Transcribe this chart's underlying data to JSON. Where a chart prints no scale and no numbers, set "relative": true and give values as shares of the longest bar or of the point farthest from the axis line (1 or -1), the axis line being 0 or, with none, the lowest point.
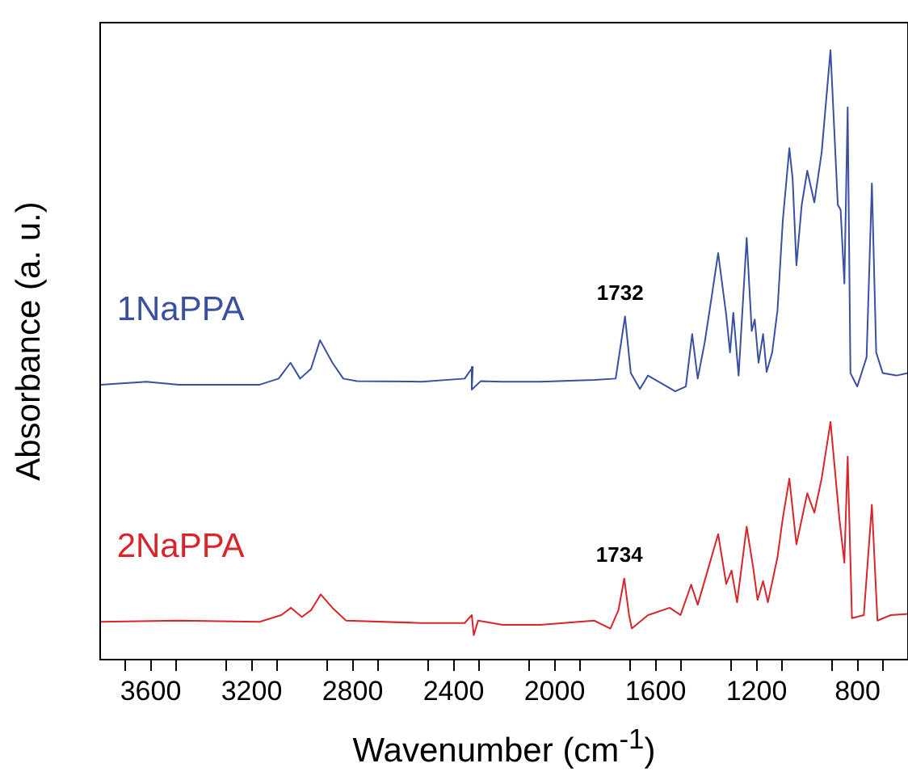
{
  "chart_data": {
    "type": "line",
    "relative": true,
    "xlabel": "Wavenumber (cm$^{-1}$)",
    "ylabel": "Absorbance (a. u.)",
    "legend": false,
    "grid": false,
    "marker": "none",
    "line_style": "solid",
    "xlim": [
      3800,
      600
    ],
    "xticks": [
      {
        "value": 3700,
        "label": null
      },
      3600,
      {
        "value": 3500,
        "label": null
      },
      {
        "value": 3300,
        "label": null
      },
      3200,
      {
        "value": 3100,
        "label": null
      },
      {
        "value": 2900,
        "label": null
      },
      2800,
      {
        "value": 2700,
        "label": null
      },
      {
        "value": 2500,
        "label": null
      },
      2400,
      {
        "value": 2300,
        "label": null
      },
      {
        "value": 2100,
        "label": null
      },
      2000,
      {
        "value": 1900,
        "label": null
      },
      {
        "value": 1700,
        "label": null
      },
      1600,
      {
        "value": 1500,
        "label": null
      },
      {
        "value": 1300,
        "label": null
      },
      1200,
      {
        "value": 1100,
        "label": null
      },
      {
        "value": 900,
        "label": null
      },
      800,
      {
        "value": 700,
        "label": null
      }
    ],
    "series": [
      {
        "name": "1NaPPA",
        "color": "#3a4fa0",
        "x": [
          3798,
          3617,
          3488,
          3168,
          3093,
          3046,
          3008,
          2965,
          2929,
          2880,
          2837,
          2783,
          2527,
          2356,
          2324,
          2328,
          2292,
          2206,
          2057,
          1843,
          1758,
          1721,
          1698,
          1662,
          1630,
          1522,
          1480,
          1455,
          1433,
          1405,
          1384,
          1352,
          1320,
          1305,
          1292,
          1271,
          1239,
          1219,
          1207,
          1192,
          1174,
          1160,
          1138,
          1117,
          1096,
          1070,
          1057,
          1042,
          1021,
          999,
          971,
          942,
          907,
          878,
          867,
          852,
          839,
          828,
          801,
          764,
          743,
          726,
          700,
          646,
          600
        ],
        "values": [
          0.451,
          0.456,
          0.451,
          0.451,
          0.461,
          0.487,
          0.461,
          0.477,
          0.524,
          0.487,
          0.461,
          0.457,
          0.456,
          0.461,
          0.48,
          0.443,
          0.457,
          0.456,
          0.456,
          0.459,
          0.461,
          0.563,
          0.47,
          0.444,
          0.466,
          0.44,
          0.448,
          0.534,
          0.461,
          0.521,
          0.578,
          0.667,
          0.565,
          0.504,
          0.569,
          0.466,
          0.692,
          0.539,
          0.558,
          0.487,
          0.534,
          0.472,
          0.504,
          0.573,
          0.72,
          0.839,
          0.789,
          0.647,
          0.746,
          0.802,
          0.75,
          0.832,
          1.0,
          0.746,
          0.738,
          0.617,
          0.906,
          0.47,
          0.448,
          0.496,
          0.781,
          0.504,
          0.47,
          0.466,
          0.47
        ]
      },
      {
        "name": "2NaPPA",
        "color": "#d8242a",
        "x": [
          3798,
          3488,
          3168,
          3083,
          3044,
          3001,
          2965,
          2926,
          2880,
          2826,
          2527,
          2356,
          2328,
          2320,
          2303,
          2206,
          2057,
          1843,
          1779,
          1747,
          1724,
          1705,
          1694,
          1630,
          1544,
          1501,
          1459,
          1433,
          1391,
          1352,
          1320,
          1299,
          1277,
          1239,
          1213,
          1196,
          1174,
          1155,
          1117,
          1096,
          1070,
          1042,
          999,
          971,
          942,
          907,
          871,
          852,
          839,
          822,
          775,
          743,
          721,
          668,
          600
        ],
        "values": [
          0.062,
          0.064,
          0.062,
          0.073,
          0.085,
          0.07,
          0.081,
          0.107,
          0.085,
          0.064,
          0.06,
          0.06,
          0.073,
          0.04,
          0.064,
          0.057,
          0.057,
          0.064,
          0.051,
          0.081,
          0.133,
          0.073,
          0.051,
          0.073,
          0.085,
          0.073,
          0.123,
          0.09,
          0.15,
          0.206,
          0.124,
          0.146,
          0.094,
          0.218,
          0.15,
          0.098,
          0.129,
          0.094,
          0.168,
          0.232,
          0.297,
          0.189,
          0.273,
          0.241,
          0.297,
          0.39,
          0.228,
          0.159,
          0.333,
          0.068,
          0.073,
          0.254,
          0.064,
          0.073,
          0.075
        ]
      }
    ],
    "annotations": [
      {
        "text": "1732",
        "x": 1721,
        "y": 0.563
      },
      {
        "text": "1734",
        "x": 1724,
        "y": 0.133
      }
    ]
  }
}
